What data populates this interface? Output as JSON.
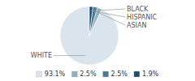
{
  "chart_data": {
    "type": "pie",
    "categories": [
      "WHITE",
      "ASIAN",
      "HISPANIC",
      "BLACK"
    ],
    "values": [
      93.1,
      2.5,
      2.5,
      1.9
    ],
    "value_labels": [
      "93.1%",
      "2.5%",
      "2.5%",
      "1.9%"
    ],
    "colors": [
      "#d9e4ec",
      "#8fafc0",
      "#4a7a96",
      "#1e4d6b"
    ],
    "legend": "bottom"
  }
}
